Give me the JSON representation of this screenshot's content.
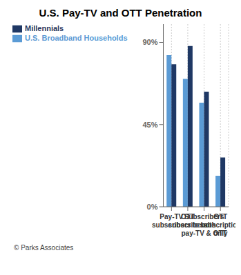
{
  "chart_data": {
    "type": "bar",
    "title": "U.S. Pay-TV and OTT Penetration",
    "categories": [
      "Pay-TV\nsubscribers",
      "OTT\nsubscribers",
      "Subscribers\nto both\npay-TV & OTT",
      "OTT\nsubscription\nonly"
    ],
    "series": [
      {
        "name": "U.S. Broadband Households",
        "color": "#5b9bd5",
        "values": [
          83,
          70,
          57,
          17
        ]
      },
      {
        "name": "Millennials",
        "color": "#1f3864",
        "values": [
          78,
          88,
          63,
          27
        ]
      }
    ],
    "ylim": [
      0,
      100
    ],
    "yticks": [
      {
        "value": 0,
        "label": "0%"
      },
      {
        "value": 45,
        "label": "45%"
      },
      {
        "value": 90,
        "label": "90%"
      }
    ],
    "grid": "x",
    "legend": "upper left",
    "annotations": [
      "© Parks Associates"
    ]
  }
}
